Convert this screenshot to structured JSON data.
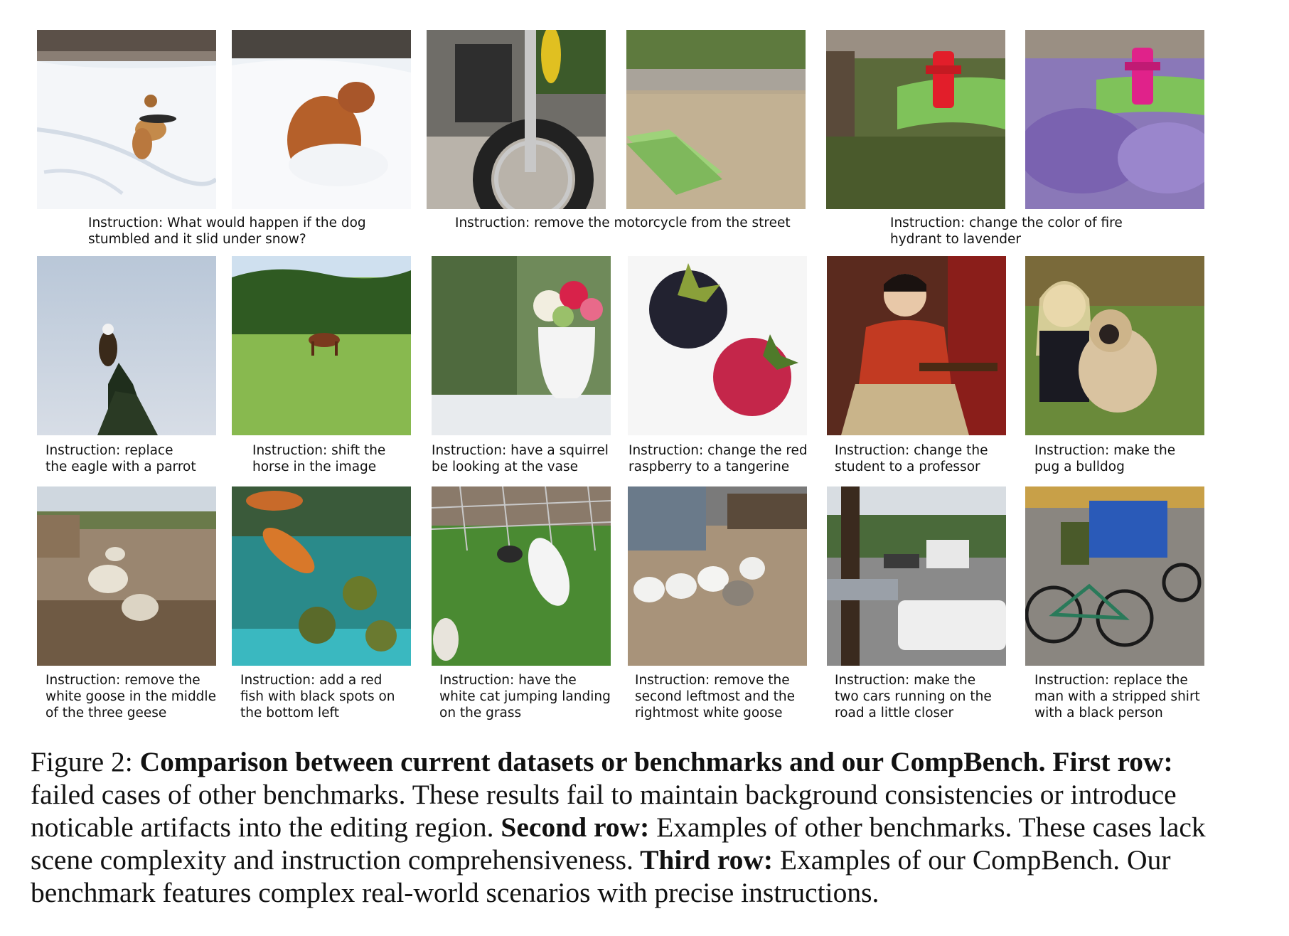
{
  "row1": {
    "images": [
      {
        "name": "dog-with-frisbee-in-snow"
      },
      {
        "name": "dog-sitting-in-snow"
      },
      {
        "name": "motorcycle-on-street"
      },
      {
        "name": "empty-street-with-bench"
      },
      {
        "name": "red-fire-hydrant"
      },
      {
        "name": "lavender-fire-hydrant"
      }
    ],
    "captions": [
      {
        "lines": [
          "Instruction: What would happen if the dog",
          "stumbled and it slid  under snow?"
        ]
      },
      {
        "lines": [
          "Instruction: remove the motorcycle from the street"
        ]
      },
      {
        "lines": [
          "Instruction: change the color of fire",
          "hydrant to lavender"
        ]
      }
    ]
  },
  "row2": {
    "images": [
      {
        "name": "eagle-on-tree"
      },
      {
        "name": "horse-in-field"
      },
      {
        "name": "flower-vase"
      },
      {
        "name": "blackberry-and-raspberry"
      },
      {
        "name": "student-painting"
      },
      {
        "name": "girl-with-pug"
      }
    ],
    "captions": [
      {
        "lines": [
          "Instruction: replace",
          "the eagle with a parrot"
        ]
      },
      {
        "lines": [
          "Instruction: shift the",
          "horse in the image"
        ]
      },
      {
        "lines": [
          "Instruction: have a squirrel",
          "be looking at the vase"
        ]
      },
      {
        "lines": [
          "Instruction: change the red",
          "raspberry to a tangerine"
        ]
      },
      {
        "lines": [
          "Instruction: change the",
          "student to a professor"
        ]
      },
      {
        "lines": [
          "Instruction: make the",
          "pug a bulldog"
        ]
      }
    ]
  },
  "row3": {
    "images": [
      {
        "name": "sheep-farmyard"
      },
      {
        "name": "fish-aquarium"
      },
      {
        "name": "white-cat-on-grass"
      },
      {
        "name": "geese-on-dirt"
      },
      {
        "name": "street-with-cars"
      },
      {
        "name": "man-on-bicycle"
      }
    ],
    "captions": [
      {
        "lines": [
          "Instruction: remove the",
          "white goose in the middle",
          "of the three geese"
        ]
      },
      {
        "lines": [
          "Instruction: add a red",
          "fish with black spots on",
          "the bottom left"
        ]
      },
      {
        "lines": [
          "Instruction: have the",
          "white cat jumping landing",
          "on the grass"
        ]
      },
      {
        "lines": [
          "Instruction: remove the",
          "second leftmost and the",
          "rightmost white goose"
        ]
      },
      {
        "lines": [
          "Instruction: make the",
          "two cars running on the",
          "road a little closer"
        ]
      },
      {
        "lines": [
          "Instruction: replace the",
          "man with a stripped shirt",
          "with a black person"
        ]
      }
    ]
  },
  "figure_caption": {
    "label": "Figure 2: ",
    "bold1": "Comparison between current datasets or benchmarks and our CompBench.",
    "bold2": " First row:",
    "text2": " failed cases of other benchmarks. These results fail to maintain background consistencies or introduce noticable artifacts into the editing region.",
    "bold3": " Second row:",
    "text3": " Examples of other benchmarks. These cases lack scene complexity and instruction comprehensiveness.",
    "bold4": " Third row:",
    "text4": " Examples of our CompBench. Our benchmark features complex real-world scenarios with precise instructions."
  }
}
